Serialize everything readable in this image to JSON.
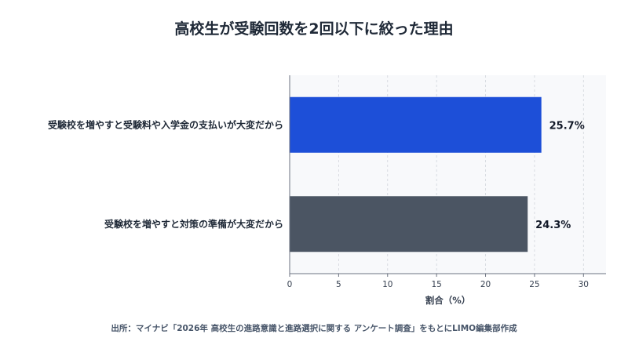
{
  "chart_data": {
    "type": "bar",
    "orientation": "horizontal",
    "title": "高校生が受験回数を2回以下に絞った理由",
    "categories": [
      "受験校を増やすと受験料や入学金の支払いが大変だから",
      "受験校を増やすと対策の準備が大変だから"
    ],
    "values": [
      25.7,
      24.3
    ],
    "value_labels": [
      "25.7%",
      "24.3%"
    ],
    "bar_colors": [
      "#1d4fd8",
      "#4b5563"
    ],
    "xlabel": "割合（%）",
    "ylabel": "",
    "xlim": [
      0,
      32.3
    ],
    "x_ticks": [
      0,
      5,
      10,
      15,
      20,
      25,
      30
    ],
    "grid": true,
    "plot_background": "#f8f9fb"
  },
  "source": "出所：マイナビ「2026年 高校生の進路意識と進路選択に関する アンケート調査」をもとにLIMO編集部作成"
}
